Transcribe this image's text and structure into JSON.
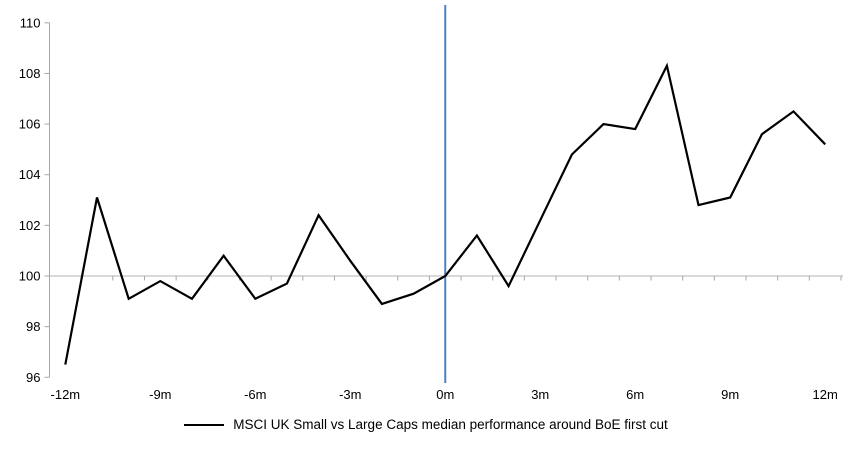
{
  "chart_data": {
    "type": "line",
    "title": "",
    "x_months": [
      -12,
      -11,
      -10,
      -9,
      -8,
      -7,
      -6,
      -5,
      -4,
      -3,
      -2,
      -1,
      0,
      1,
      2,
      3,
      4,
      5,
      6,
      7,
      8,
      9,
      10,
      11,
      12
    ],
    "series": [
      {
        "name": "MSCI UK Small vs Large Caps median performance around BoE first cut",
        "color": "#000000",
        "values": [
          96.5,
          103.1,
          99.1,
          99.8,
          99.1,
          100.8,
          99.1,
          99.7,
          102.4,
          100.6,
          98.9,
          99.3,
          100.0,
          101.6,
          99.6,
          102.2,
          104.8,
          106.0,
          105.8,
          108.3,
          102.8,
          103.1,
          105.6,
          106.5,
          105.2
        ]
      }
    ],
    "ylim": [
      96,
      110
    ],
    "yticks": [
      96,
      98,
      100,
      102,
      104,
      106,
      108,
      110
    ],
    "xticks": [
      {
        "month": -12,
        "label": "-12m"
      },
      {
        "month": -9,
        "label": "-9m"
      },
      {
        "month": -6,
        "label": "-6m"
      },
      {
        "month": -3,
        "label": "-3m"
      },
      {
        "month": 0,
        "label": "0m"
      },
      {
        "month": 3,
        "label": "3m"
      },
      {
        "month": 6,
        "label": "6m"
      },
      {
        "month": 9,
        "label": "9m"
      },
      {
        "month": 12,
        "label": "12m"
      }
    ],
    "grid": "off",
    "reference_lines": {
      "horizontal_at": 100,
      "horizontal_color": "#b3b3b3",
      "vertical_at": 0,
      "vertical_color": "#4f81bd"
    },
    "axis_color": "#a6a6a6",
    "legend": {
      "position": "bottom-center",
      "label": "MSCI UK Small vs Large Caps median performance around BoE first cut"
    }
  }
}
